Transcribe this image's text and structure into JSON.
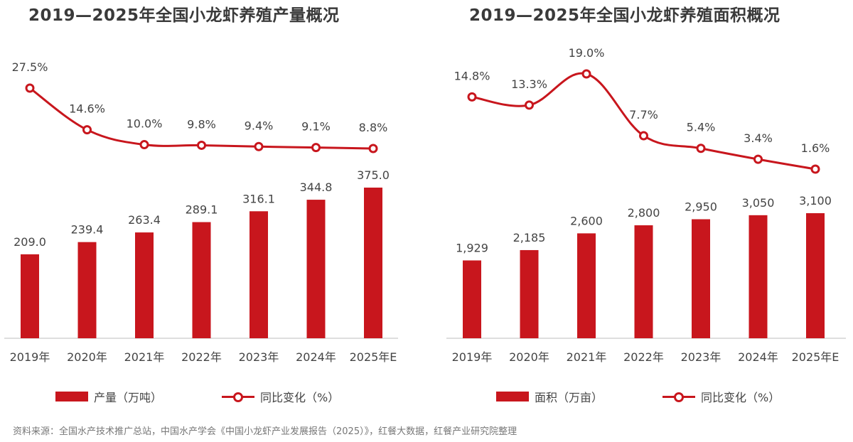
{
  "chart_data": [
    {
      "type": "bar+line",
      "title": "2019—2025年全国小龙虾养殖产量概况",
      "categories": [
        "2019年",
        "2020年",
        "2021年",
        "2022年",
        "2023年",
        "2024年",
        "2025年E"
      ],
      "series": [
        {
          "name": "产量（万吨）",
          "type": "bar",
          "values": [
            209.0,
            239.4,
            263.4,
            289.1,
            316.1,
            344.8,
            375.0
          ],
          "labels": [
            "209.0",
            "239.4",
            "263.4",
            "289.1",
            "316.1",
            "344.8",
            "375.0"
          ]
        },
        {
          "name": "同比变化（%）",
          "type": "line",
          "values": [
            27.5,
            14.6,
            10.0,
            9.8,
            9.4,
            9.1,
            8.8
          ],
          "labels": [
            "27.5%",
            "14.6%",
            "10.0%",
            "9.8%",
            "9.4%",
            "9.1%",
            "8.8%"
          ]
        }
      ],
      "color": "#c8161d"
    },
    {
      "type": "bar+line",
      "title": "2019—2025年全国小龙虾养殖面积概况",
      "categories": [
        "2019年",
        "2020年",
        "2021年",
        "2022年",
        "2023年",
        "2024年",
        "2025年E"
      ],
      "series": [
        {
          "name": "面积（万亩）",
          "type": "bar",
          "values": [
            1929,
            2185,
            2600,
            2800,
            2950,
            3050,
            3100
          ],
          "labels": [
            "1,929",
            "2,185",
            "2,600",
            "2,800",
            "2,950",
            "3,050",
            "3,100"
          ]
        },
        {
          "name": "同比变化（%）",
          "type": "line",
          "values": [
            14.8,
            13.3,
            19.0,
            7.7,
            5.4,
            3.4,
            1.6
          ],
          "labels": [
            "14.8%",
            "13.3%",
            "19.0%",
            "7.7%",
            "5.4%",
            "3.4%",
            "1.6%"
          ]
        }
      ],
      "color": "#c8161d"
    }
  ],
  "source": "资料来源：全国水产技术推广总站，中国水产学会《中国小龙虾产业发展报告（2025）》，红餐大数据，红餐产业研究院整理"
}
